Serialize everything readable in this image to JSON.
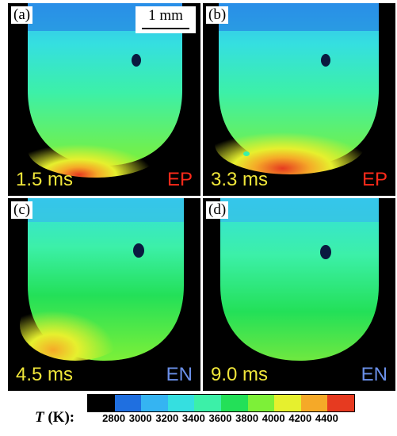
{
  "panels": [
    {
      "label": "(a)",
      "time": "1.5 ms",
      "mode": "EP",
      "mode_color": "#ff2a1a"
    },
    {
      "label": "(b)",
      "time": "3.3 ms",
      "mode": "EP",
      "mode_color": "#ff2a1a"
    },
    {
      "label": "(c)",
      "time": "4.5 ms",
      "mode": "EN",
      "mode_color": "#6a8fe8"
    },
    {
      "label": "(d)",
      "time": "9.0 ms",
      "mode": "EN",
      "mode_color": "#6a8fe8"
    }
  ],
  "scale_bar": "1 mm",
  "colorbar": {
    "title_symbol": "T",
    "title_unit": " (K):",
    "ticks": [
      "2800",
      "3000",
      "3200",
      "3400",
      "3600",
      "3800",
      "4000",
      "4200",
      "4400"
    ],
    "colors": [
      "#000000",
      "#1f6fe0",
      "#35b4f2",
      "#35dfe0",
      "#3cf0a8",
      "#23e058",
      "#7df038",
      "#e6f02e",
      "#f5a928",
      "#e63a20"
    ]
  }
}
